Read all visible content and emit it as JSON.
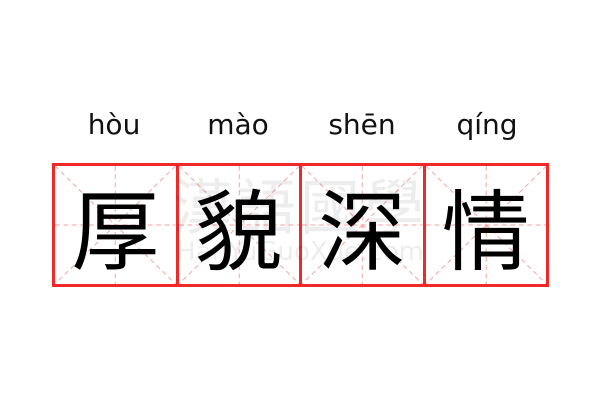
{
  "idiom": {
    "pinyin": [
      "hòu",
      "mào",
      "shēn",
      "qíng"
    ],
    "characters": [
      "厚",
      "貌",
      "深",
      "情"
    ]
  },
  "watermark": {
    "chinese": "漢語國學",
    "latin": "HanYuGuoXue.com"
  },
  "colors": {
    "grid_border": "#f02828",
    "guide_lines": "#f7a0a0",
    "text": "#000000"
  }
}
